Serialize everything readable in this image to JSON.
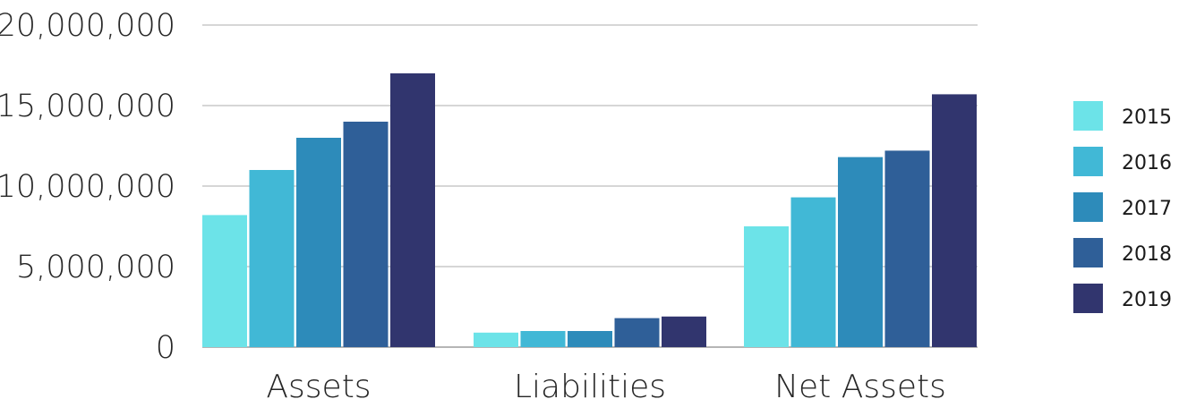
{
  "chart_data": {
    "type": "bar",
    "categories": [
      "Assets",
      "Liabilities",
      "Net Assets"
    ],
    "series": [
      {
        "name": "2015",
        "color": "#6CE3E8",
        "values": [
          8200000,
          900000,
          7500000
        ]
      },
      {
        "name": "2016",
        "color": "#41B8D6",
        "values": [
          11000000,
          1000000,
          9300000
        ]
      },
      {
        "name": "2017",
        "color": "#2D8BBA",
        "values": [
          13000000,
          1000000,
          11800000
        ]
      },
      {
        "name": "2018",
        "color": "#2F5F98",
        "values": [
          14000000,
          1800000,
          12200000
        ]
      },
      {
        "name": "2019",
        "color": "#31356E",
        "values": [
          17000000,
          1900000,
          15700000
        ]
      }
    ],
    "ylim": [
      0,
      20000000
    ],
    "yticks": [
      0,
      5000000,
      10000000,
      15000000,
      20000000
    ],
    "ytick_labels": [
      "0",
      "5,000,000",
      "10,000,000",
      "15,000,000",
      "20,000,000"
    ],
    "grid": true,
    "legend_position": "right",
    "title": "",
    "xlabel": "",
    "ylabel": ""
  }
}
